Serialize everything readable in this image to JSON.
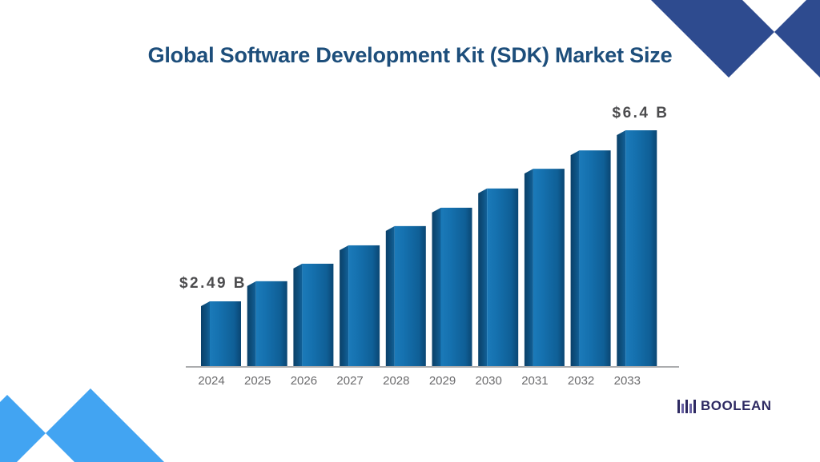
{
  "header": {
    "title": "Global Software Development Kit (SDK) Market Size"
  },
  "chart_data": {
    "type": "bar",
    "title": "Global Software Development Kit (SDK) Market Size",
    "categories": [
      "2024",
      "2025",
      "2026",
      "2027",
      "2028",
      "2029",
      "2030",
      "2031",
      "2032",
      "2033"
    ],
    "values": [
      2.49,
      2.95,
      3.35,
      3.77,
      4.21,
      4.63,
      5.07,
      5.52,
      5.94,
      6.4
    ],
    "unit": "USD billions",
    "values_note": "Only first and last bars are labeled ($2.49 B in 2024, $6.4 B in 2033); intermediate values estimated from bar heights",
    "annotations": {
      "first_bar_label": "$2.49 B",
      "last_bar_label": "$6.4 B"
    },
    "xlabel": "",
    "ylabel": "",
    "legend": false,
    "grid": false,
    "x_axis_line": true
  },
  "branding": {
    "logo_text": "BOOLEAN",
    "logo_icon": "barcode-bars-icon"
  },
  "colors": {
    "title_text": "#1d4e7b",
    "bar_main_light": "#1b7ab9",
    "bar_main": "#1571af",
    "bar_main_dark": "#0a4673",
    "bar_side_dark": "#0a4068",
    "axis_line": "#8f9193",
    "value_label_text": "#4c4c4e",
    "year_label_text": "#6b6b6d",
    "corner_dark_blue": "#2e4b8f",
    "corner_light_blue": "#42a4f2",
    "logo_navy": "#2e2a62"
  }
}
